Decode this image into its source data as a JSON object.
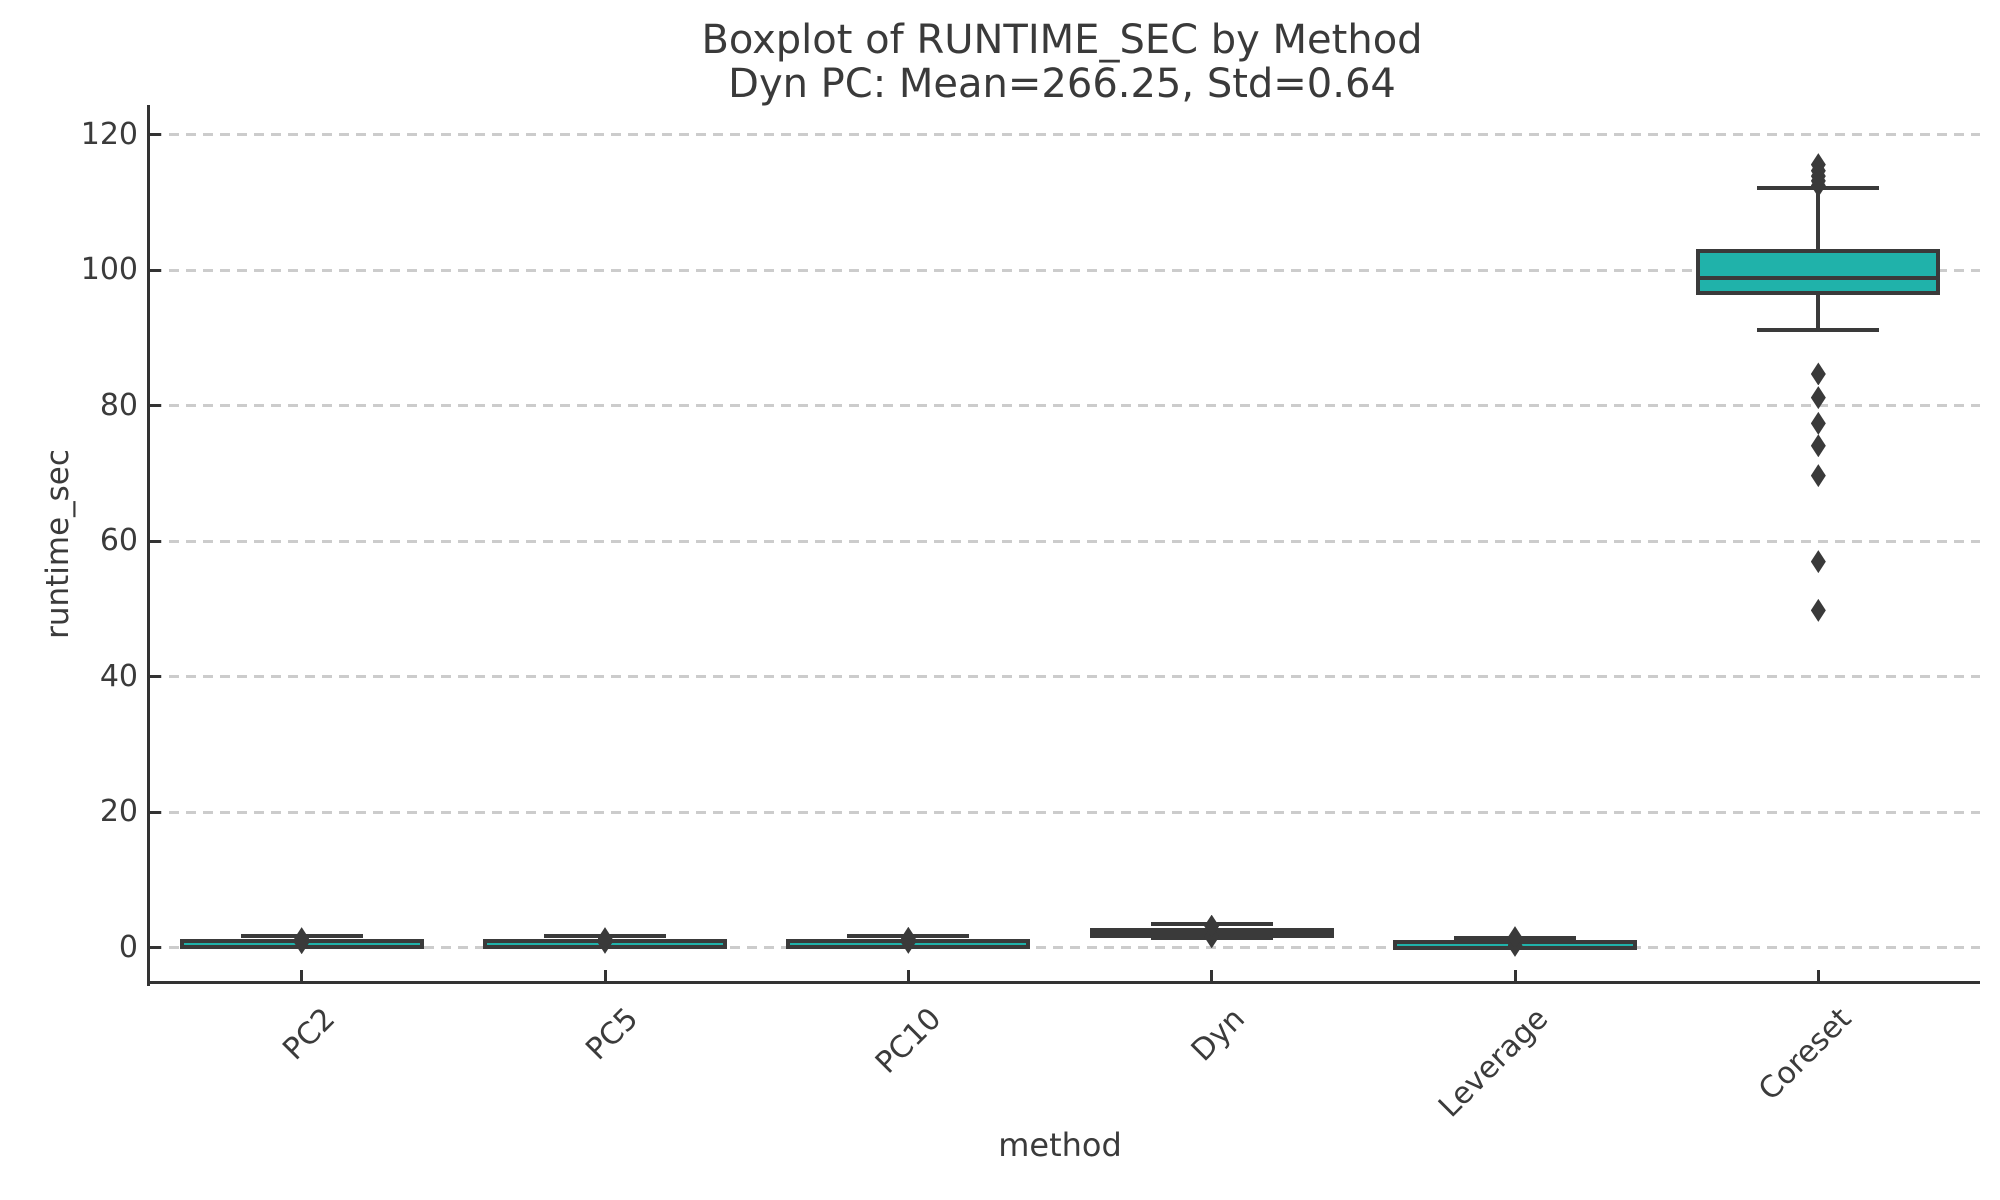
{
  "chart_data": {
    "type": "boxplot",
    "title": "Boxplot of RUNTIME_SEC by Method",
    "subtitle": "Dyn PC: Mean=266.25, Std=0.64",
    "xlabel": "method",
    "ylabel": "runtime_sec",
    "categories": [
      "PC2",
      "PC5",
      "PC10",
      "Dyn",
      "Leverage",
      "Coreset"
    ],
    "yticks": [
      0,
      20,
      40,
      60,
      80,
      100,
      120
    ],
    "ylim": [
      -5.2,
      124.4
    ],
    "grid": "horizontal-dashed",
    "legend": "none",
    "series": [
      {
        "method": "PC2",
        "whislo": 0.35,
        "q1": 0.7,
        "med": 1.0,
        "q3": 1.3,
        "whishi": 1.75,
        "outliers": [
          0.75,
          1.35
        ]
      },
      {
        "method": "PC5",
        "whislo": 0.3,
        "q1": 0.65,
        "med": 0.95,
        "q3": 1.3,
        "whishi": 1.7,
        "outliers": [
          0.8,
          1.35
        ]
      },
      {
        "method": "PC10",
        "whislo": 0.35,
        "q1": 0.7,
        "med": 1.0,
        "q3": 1.35,
        "whishi": 1.75,
        "outliers": [
          0.8,
          1.4
        ]
      },
      {
        "method": "Dyn",
        "whislo": 1.45,
        "q1": 2.0,
        "med": 2.4,
        "q3": 2.9,
        "whishi": 3.5,
        "outliers": [
          1.6,
          3.2
        ]
      },
      {
        "method": "Leverage",
        "whislo": 0.35,
        "q1": 0.6,
        "med": 0.85,
        "q3": 1.15,
        "whishi": 1.45,
        "outliers": [
          0.35,
          1.5
        ]
      },
      {
        "method": "Coreset",
        "whislo": 91.2,
        "q1": 96.4,
        "med": 98.8,
        "q3": 103.2,
        "whishi": 112.1,
        "outliers": [
          115.6,
          114.7,
          113.9,
          113.2,
          112.5,
          84.7,
          81.2,
          77.4,
          74.1,
          69.7,
          57.0,
          49.8
        ]
      }
    ],
    "colors": {
      "box_fill": "#20b2aa",
      "box_edge": "#3a3a3a",
      "whisker": "#3a3a3a",
      "outlier": "#3a3a3a",
      "grid": "#cccccc",
      "spine": "#333333",
      "text": "#3b3b3b",
      "title_text": "#3a3a3a",
      "background": "#ffffff"
    }
  }
}
